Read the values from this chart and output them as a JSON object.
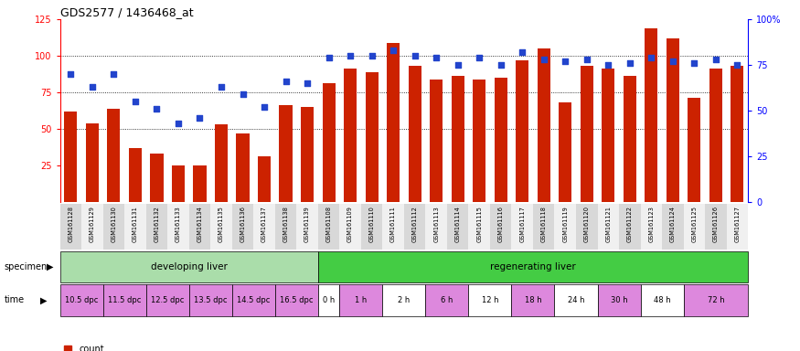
{
  "title": "GDS2577 / 1436468_at",
  "samples": [
    "GSM161128",
    "GSM161129",
    "GSM161130",
    "GSM161131",
    "GSM161132",
    "GSM161133",
    "GSM161134",
    "GSM161135",
    "GSM161136",
    "GSM161137",
    "GSM161138",
    "GSM161139",
    "GSM161108",
    "GSM161109",
    "GSM161110",
    "GSM161111",
    "GSM161112",
    "GSM161113",
    "GSM161114",
    "GSM161115",
    "GSM161116",
    "GSM161117",
    "GSM161118",
    "GSM161119",
    "GSM161120",
    "GSM161121",
    "GSM161122",
    "GSM161123",
    "GSM161124",
    "GSM161125",
    "GSM161126",
    "GSM161127"
  ],
  "counts": [
    62,
    54,
    64,
    37,
    33,
    25,
    25,
    53,
    47,
    31,
    66,
    65,
    81,
    91,
    89,
    109,
    93,
    84,
    86,
    84,
    85,
    97,
    105,
    68,
    93,
    91,
    86,
    119,
    112,
    71,
    91,
    93
  ],
  "percentiles": [
    70,
    63,
    70,
    55,
    51,
    43,
    46,
    63,
    59,
    52,
    66,
    65,
    79,
    80,
    80,
    83,
    80,
    79,
    75,
    79,
    75,
    82,
    78,
    77,
    78,
    75,
    76,
    79,
    77,
    76,
    78,
    75
  ],
  "bar_color": "#cc2200",
  "dot_color": "#2244cc",
  "ylim_left": [
    0,
    125
  ],
  "ylim_right": [
    0,
    100
  ],
  "yticks_left": [
    25,
    50,
    75,
    100,
    125
  ],
  "yticks_right": [
    0,
    25,
    50,
    75,
    100
  ],
  "ytick_right_labels": [
    "0",
    "25",
    "50",
    "75",
    "100%"
  ],
  "grid_lines": [
    50,
    75,
    100
  ],
  "specimen_groups": [
    {
      "label": "developing liver",
      "start": 0,
      "end": 12,
      "color": "#aaddaa"
    },
    {
      "label": "regenerating liver",
      "start": 12,
      "end": 32,
      "color": "#44cc44"
    }
  ],
  "time_groups": [
    {
      "label": "10.5 dpc",
      "start": 0,
      "end": 2,
      "color": "#dd88dd"
    },
    {
      "label": "11.5 dpc",
      "start": 2,
      "end": 4,
      "color": "#dd88dd"
    },
    {
      "label": "12.5 dpc",
      "start": 4,
      "end": 6,
      "color": "#dd88dd"
    },
    {
      "label": "13.5 dpc",
      "start": 6,
      "end": 8,
      "color": "#dd88dd"
    },
    {
      "label": "14.5 dpc",
      "start": 8,
      "end": 10,
      "color": "#dd88dd"
    },
    {
      "label": "16.5 dpc",
      "start": 10,
      "end": 12,
      "color": "#dd88dd"
    },
    {
      "label": "0 h",
      "start": 12,
      "end": 13,
      "color": "#ffffff"
    },
    {
      "label": "1 h",
      "start": 13,
      "end": 15,
      "color": "#dd88dd"
    },
    {
      "label": "2 h",
      "start": 15,
      "end": 17,
      "color": "#ffffff"
    },
    {
      "label": "6 h",
      "start": 17,
      "end": 19,
      "color": "#dd88dd"
    },
    {
      "label": "12 h",
      "start": 19,
      "end": 21,
      "color": "#ffffff"
    },
    {
      "label": "18 h",
      "start": 21,
      "end": 23,
      "color": "#dd88dd"
    },
    {
      "label": "24 h",
      "start": 23,
      "end": 25,
      "color": "#ffffff"
    },
    {
      "label": "30 h",
      "start": 25,
      "end": 27,
      "color": "#dd88dd"
    },
    {
      "label": "48 h",
      "start": 27,
      "end": 29,
      "color": "#ffffff"
    },
    {
      "label": "72 h",
      "start": 29,
      "end": 32,
      "color": "#dd88dd"
    }
  ],
  "legend_count_color": "#cc2200",
  "legend_pct_color": "#2244cc",
  "bar_width": 0.6,
  "xtick_bg_even": "#d8d8d8",
  "xtick_bg_odd": "#f0f0f0"
}
